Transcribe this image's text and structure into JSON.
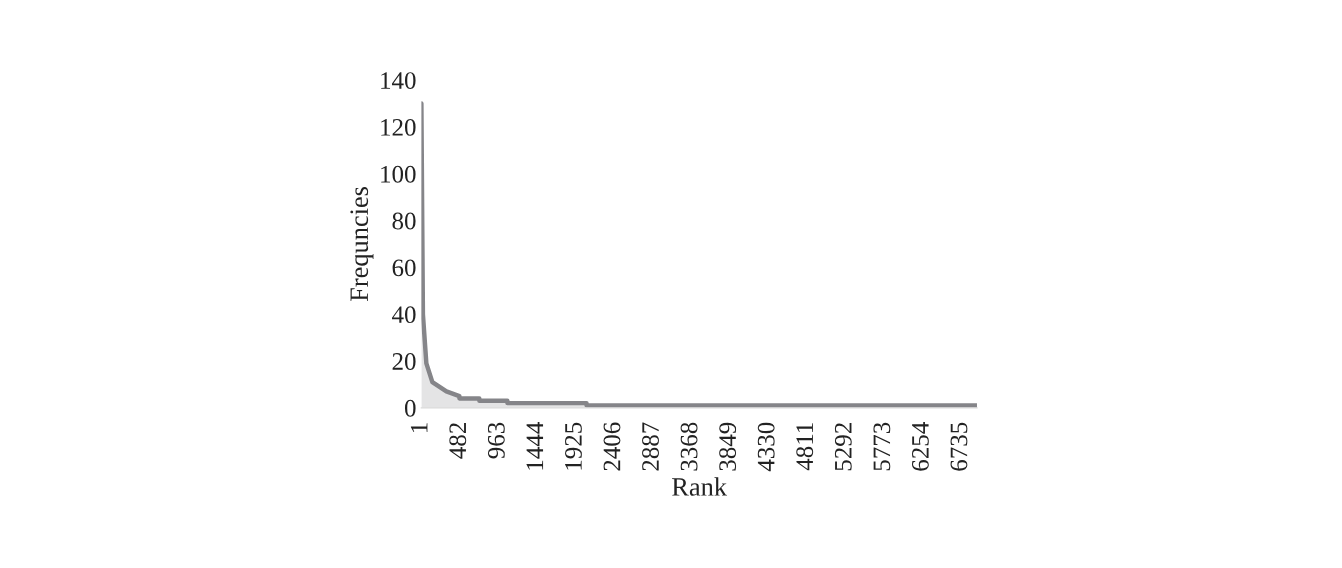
{
  "chart_data": {
    "type": "area",
    "xlabel": "Rank",
    "ylabel": "Frequncies",
    "x": [
      1,
      20,
      63,
      138,
      313,
      475,
      476,
      724,
      725,
      1074,
      1075,
      2061,
      2062,
      6933
    ],
    "series": [
      {
        "color": "#858589",
        "values": [
          130,
          40,
          19,
          11,
          7,
          5,
          4,
          4,
          3,
          3,
          2,
          2,
          1,
          1
        ]
      }
    ],
    "xlim": [
      1,
      6933
    ],
    "xticks": [
      1,
      482,
      963,
      1444,
      1925,
      2406,
      2887,
      3368,
      3849,
      4330,
      4811,
      5292,
      5773,
      6254,
      6735
    ],
    "ylim": [
      0,
      140
    ],
    "yticks": [
      0,
      20,
      40,
      60,
      80,
      100,
      120,
      140
    ]
  }
}
